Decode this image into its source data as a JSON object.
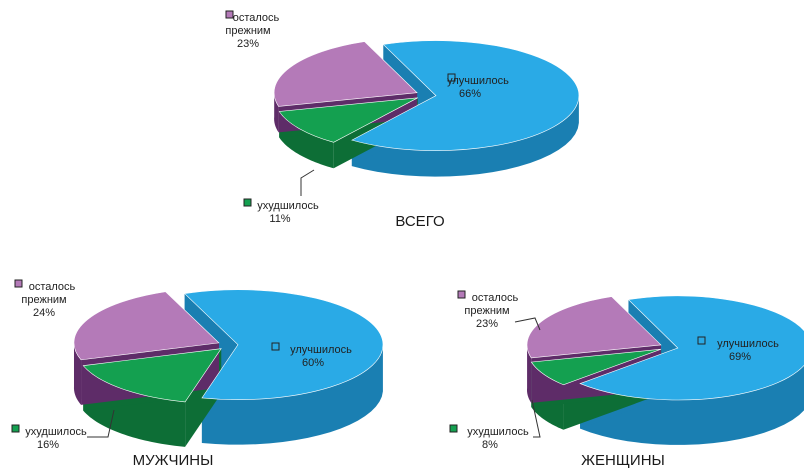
{
  "chart_data": [
    {
      "type": "pie",
      "title": "ВСЕГО",
      "slices": [
        {
          "label": "улучшилось",
          "value": 66,
          "value_label": "66%",
          "color": "#2aaae6",
          "dark": "#1a7fb2"
        },
        {
          "label": "ухудшилось",
          "value": 11,
          "value_label": "11%",
          "color": "#14a050",
          "dark": "#0d6e36"
        },
        {
          "label": "осталось прежним",
          "value": 23,
          "value_label": "23%",
          "color": "#b47ab8",
          "dark": "#5e2c68"
        }
      ]
    },
    {
      "type": "pie",
      "title": "МУЖЧИНЫ",
      "slices": [
        {
          "label": "улучшилось",
          "value": 60,
          "value_label": "60%",
          "color": "#2aaae6",
          "dark": "#1a7fb2"
        },
        {
          "label": "ухудшилось",
          "value": 16,
          "value_label": "16%",
          "color": "#14a050",
          "dark": "#0d6e36"
        },
        {
          "label": "осталось прежним",
          "value": 24,
          "value_label": "24%",
          "color": "#b47ab8",
          "dark": "#5e2c68"
        }
      ]
    },
    {
      "type": "pie",
      "title": "ЖЕНЩИНЫ",
      "slices": [
        {
          "label": "улучшилось",
          "value": 69,
          "value_label": "69%",
          "color": "#2aaae6",
          "dark": "#1a7fb2"
        },
        {
          "label": "ухудшилось",
          "value": 8,
          "value_label": "8%",
          "color": "#14a050",
          "dark": "#0d6e36"
        },
        {
          "label": "осталось прежним",
          "value": 23,
          "value_label": "23%",
          "color": "#b47ab8",
          "dark": "#5e2c68"
        }
      ]
    }
  ],
  "label_lines": {
    "осталось прежним": [
      "осталось",
      "прежним"
    ]
  }
}
